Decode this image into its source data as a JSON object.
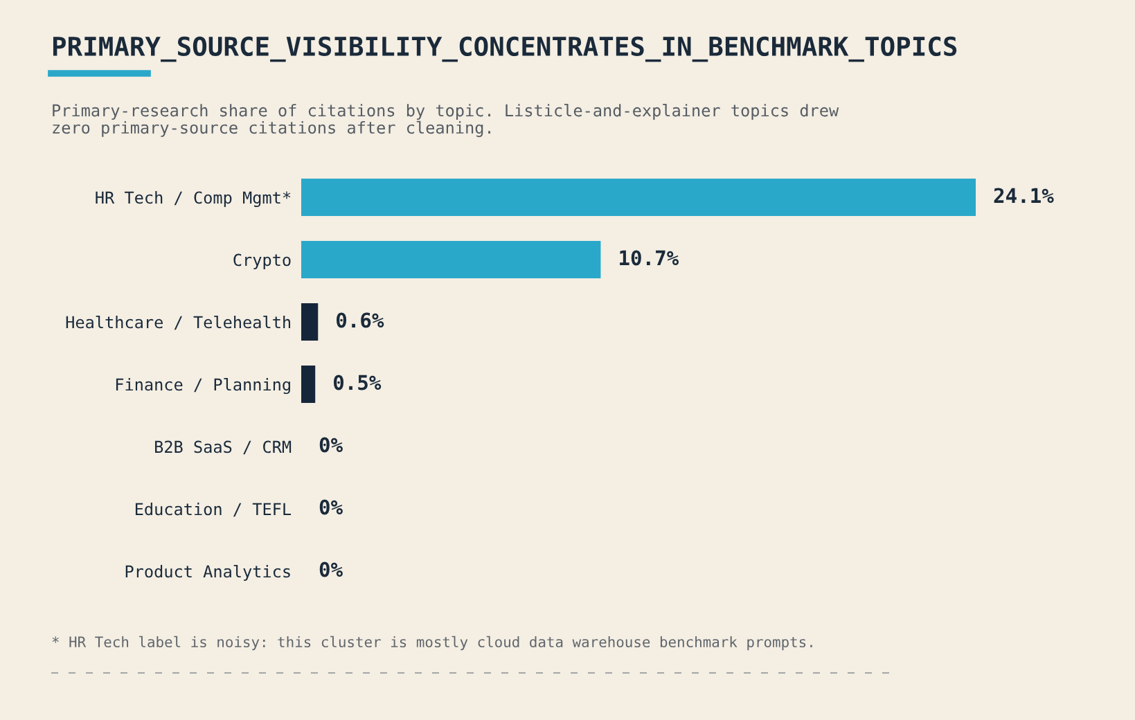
{
  "chart_data": {
    "type": "bar",
    "orientation": "horizontal",
    "title": "PRIMARY_SOURCE_VISIBILITY_CONCENTRATES_IN_BENCHMARK_TOPICS",
    "subtitle": "Primary-research share of citations by topic. Listicle-and-explainer topics drew\nzero primary-source citations after cleaning.",
    "categories": [
      "HR Tech / Comp Mgmt*",
      "Crypto",
      "Healthcare / Telehealth",
      "Finance / Planning",
      "B2B SaaS / CRM",
      "Education / TEFL",
      "Product Analytics"
    ],
    "values": [
      24.1,
      10.7,
      0.6,
      0.5,
      0,
      0,
      0
    ],
    "colors": [
      "#2aa8c9",
      "#2aa8c9",
      "#16263a",
      "#16263a",
      "#16263a",
      "#16263a",
      "#16263a"
    ],
    "value_labels": [
      "24.1%",
      "10.7%",
      "0.6%",
      "0.5%",
      "0%",
      "0%",
      "0%"
    ],
    "annotations": [
      "* HR Tech label is noisy: this cluster is mostly cloud data warehouse benchmark prompts."
    ],
    "grid": false,
    "legend": false
  }
}
